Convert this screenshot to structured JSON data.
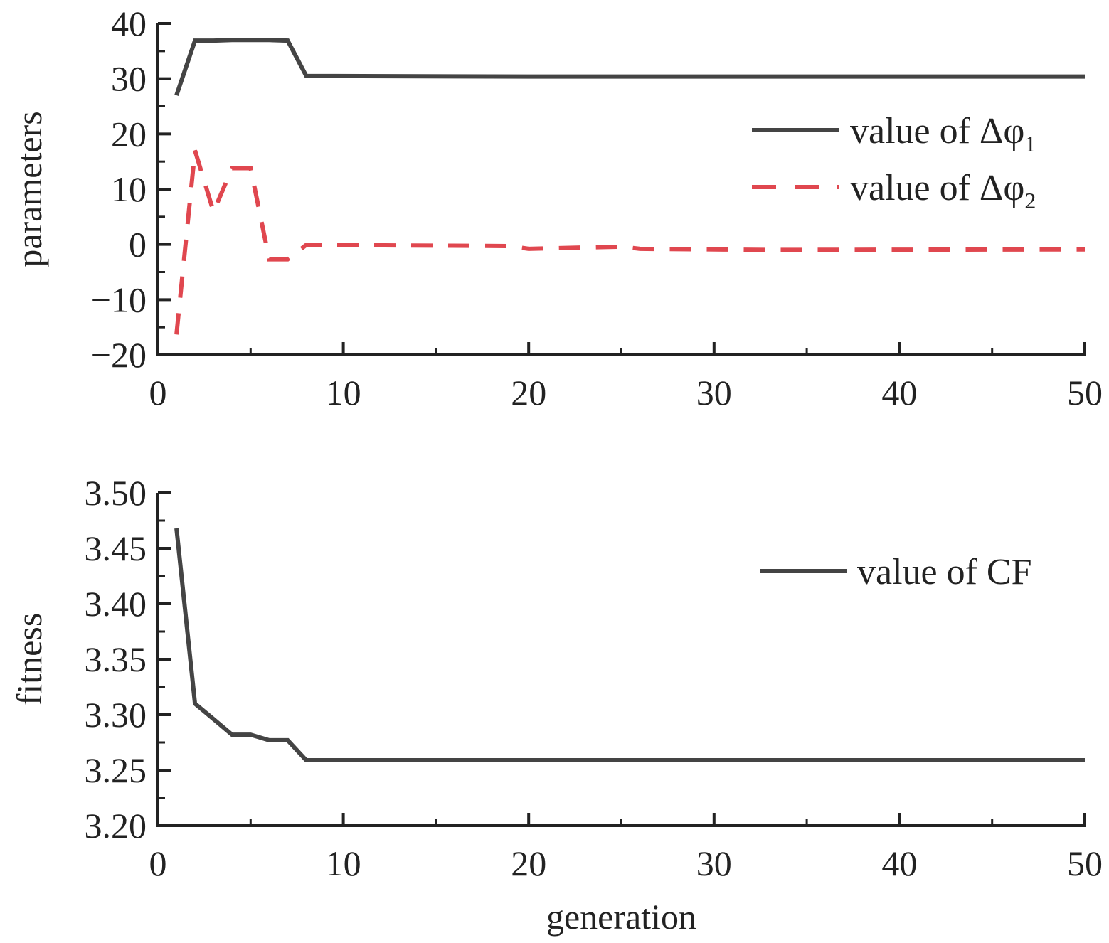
{
  "colors": {
    "axis": "#222222",
    "series_solid": "#444444",
    "series_dashed": "#e0474f"
  },
  "chart_data": [
    {
      "type": "line",
      "ylabel": "parameters",
      "xlabel": "",
      "xlim": [
        0,
        50
      ],
      "ylim": [
        -20,
        40
      ],
      "xticks": [
        "0",
        "10",
        "20",
        "30",
        "40",
        "50"
      ],
      "yticks": [
        "−20",
        "−10",
        "0",
        "10",
        "20",
        "30",
        "40"
      ],
      "grid": false,
      "legend_placement": "top-right",
      "series": [
        {
          "name": "value of Δφ",
          "subscript": "1",
          "style": "solid",
          "x": [
            1,
            2,
            3,
            4,
            5,
            6,
            7,
            8,
            20,
            50
          ],
          "y": [
            27.0,
            36.9,
            36.9,
            37.0,
            37.0,
            37.0,
            36.9,
            30.5,
            30.4,
            30.4
          ]
        },
        {
          "name": "value of Δφ",
          "subscript": "2",
          "style": "dashed",
          "x": [
            1,
            2,
            3,
            4,
            5,
            6,
            7,
            8,
            19,
            20,
            25,
            26,
            33,
            50
          ],
          "y": [
            -16.3,
            17.0,
            5.9,
            13.8,
            13.8,
            -2.7,
            -2.7,
            -0.1,
            -0.3,
            -0.8,
            -0.4,
            -0.8,
            -1.0,
            -0.9
          ]
        }
      ]
    },
    {
      "type": "line",
      "ylabel": "fitness",
      "xlabel": "generation",
      "xlim": [
        0,
        50
      ],
      "ylim": [
        3.2,
        3.5
      ],
      "xticks": [
        "0",
        "10",
        "20",
        "30",
        "40",
        "50"
      ],
      "yticks": [
        "3.20",
        "3.25",
        "3.30",
        "3.35",
        "3.40",
        "3.45",
        "3.50"
      ],
      "grid": false,
      "legend_placement": "top-right",
      "series": [
        {
          "name": "value of CF",
          "subscript": "",
          "style": "solid",
          "x": [
            1,
            2,
            3,
            4,
            5,
            6,
            7,
            8,
            50
          ],
          "y": [
            3.468,
            3.31,
            3.296,
            3.282,
            3.282,
            3.277,
            3.277,
            3.259,
            3.259
          ]
        }
      ]
    }
  ]
}
